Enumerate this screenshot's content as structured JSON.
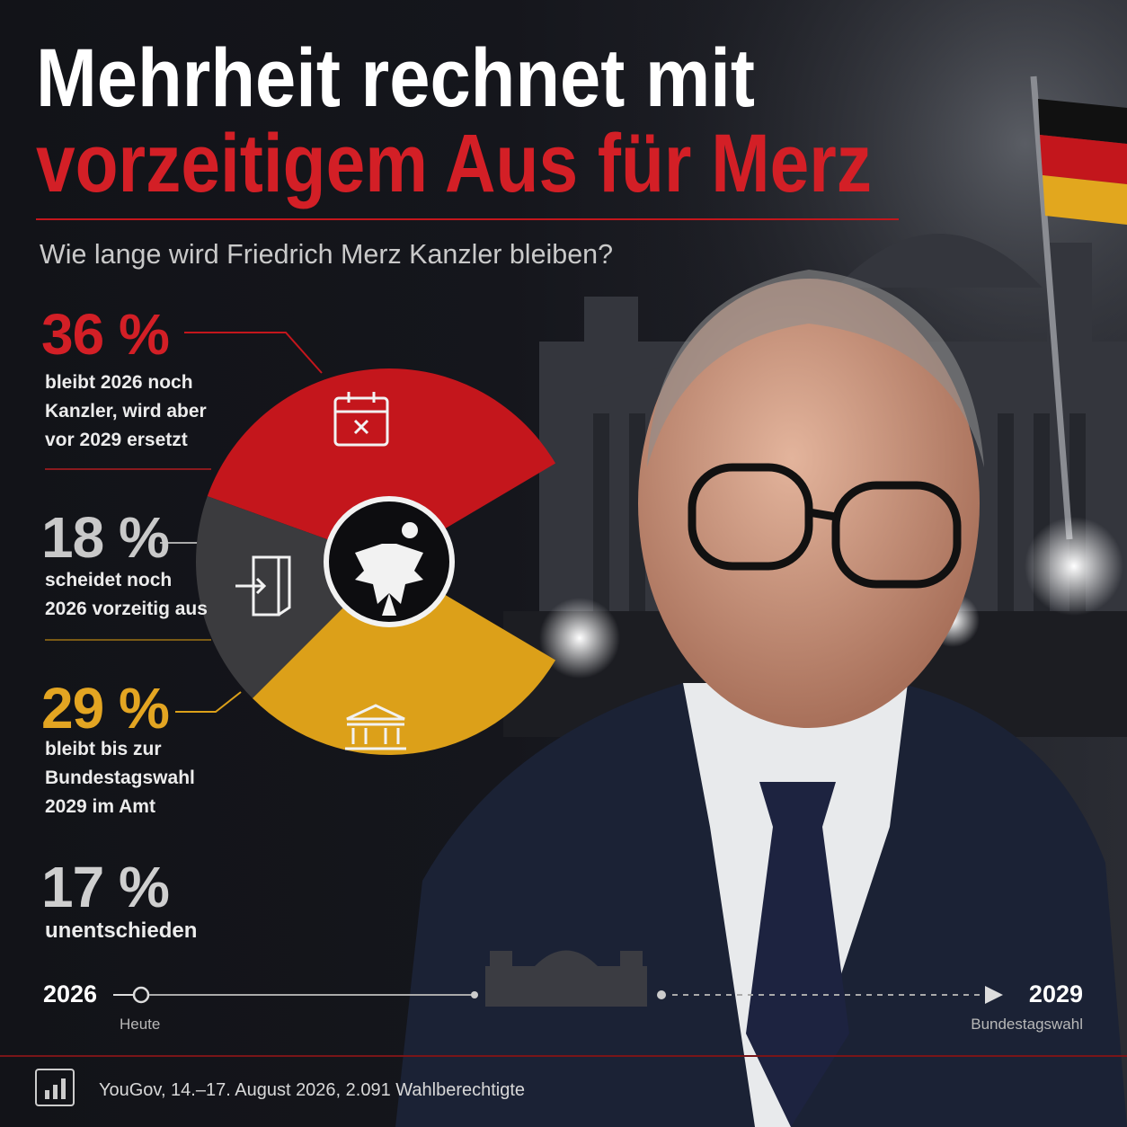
{
  "header": {
    "title_line1": "Mehrheit rechnet mit",
    "title_line2": "vorzeitigem Aus für Merz",
    "subtitle": "Wie lange wird Friedrich Merz Kanzler bleiben?"
  },
  "chart_data": {
    "type": "donut",
    "categories": [
      "bleibt 2026 noch\nKanzler, wird aber\nvor 2029 ersetzt",
      "scheidet noch\n2026 vorzeitig aus",
      "bleibt bis zur\nBundestagswahl\n2029 im Amt",
      "unentschieden"
    ],
    "values": [
      36,
      18,
      29,
      17
    ],
    "value_labels": [
      "36 %",
      "18 %",
      "29 %",
      "17 %"
    ],
    "colors": [
      "#c4161c",
      "#3b3b3e",
      "#dca019",
      "none"
    ]
  },
  "timeline": {
    "start": "2026",
    "start_label": "Heute",
    "end": "2029",
    "end_label": "Bundestagswahl"
  },
  "source": "YouGov, 14.–17. August 2026, 2.091 Wahlberechtigte"
}
